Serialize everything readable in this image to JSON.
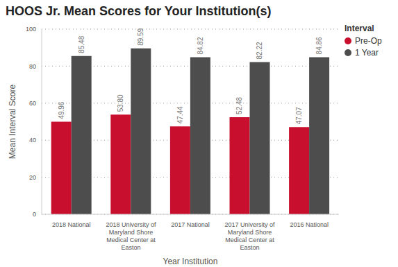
{
  "chart_data": {
    "type": "bar",
    "title": "HOOS Jr. Mean Scores for Your Institution(s)",
    "x_label": "Year Institution",
    "y_label": "Mean Interval Score",
    "legend_title": "Interval",
    "categories": [
      "2018 National",
      "2018 University of Maryland Shore Medical Center at Easton",
      "2017 National",
      "2017 University of Maryland Shore Medical Center at Easton",
      "2016 National"
    ],
    "series": [
      {
        "name": "Pre-Op",
        "color": "#c8102e",
        "values": [
          49.96,
          53.8,
          47.44,
          52.48,
          47.07
        ],
        "value_labels": [
          "49.96",
          "53.80",
          "47.44",
          "52.48",
          "47.07"
        ]
      },
      {
        "name": "1 Year",
        "color": "#4d4d4d",
        "values": [
          85.48,
          89.59,
          84.82,
          82.22,
          84.86
        ]
      }
    ],
    "ylim": [
      0,
      100
    ],
    "yticks": [
      0,
      20,
      40,
      60,
      80,
      100
    ],
    "grid": true,
    "legend": "right",
    "data_labels": true
  }
}
